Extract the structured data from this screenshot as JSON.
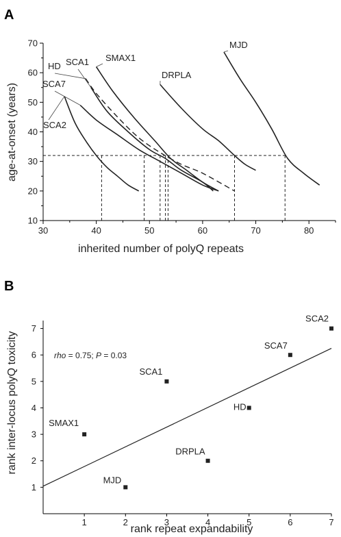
{
  "panels": {
    "a": "A",
    "b": "B"
  },
  "chart_data": [
    {
      "type": "line",
      "panel": "A",
      "title": "",
      "xlabel": "inherited number of polyQ repeats",
      "ylabel": "age-at-onset (years)",
      "xlim": [
        30,
        85
      ],
      "ylim": [
        10,
        70
      ],
      "xticks": [
        "30",
        "40",
        "50",
        "60",
        "70",
        "80"
      ],
      "yticks": [
        "10",
        "20",
        "30",
        "40",
        "50",
        "60",
        "70"
      ],
      "grid": false,
      "series": [
        {
          "name": "SCA2",
          "style": "solid",
          "points": [
            [
              34,
              52
            ],
            [
              36,
              43
            ],
            [
              38,
              37
            ],
            [
              40,
              32
            ],
            [
              42,
              28
            ],
            [
              44,
              25
            ],
            [
              46,
              22
            ],
            [
              48,
              20
            ]
          ]
        },
        {
          "name": "SCA7",
          "style": "solid",
          "points": [
            [
              37,
              49
            ],
            [
              40,
              44
            ],
            [
              44,
              39
            ],
            [
              48,
              34
            ],
            [
              52,
              30
            ],
            [
              56,
              26
            ],
            [
              60,
              22
            ],
            [
              63,
              20
            ]
          ]
        },
        {
          "name": "HD",
          "style": "dashed",
          "points": [
            [
              38,
              58
            ],
            [
              40,
              53
            ],
            [
              44,
              45
            ],
            [
              48,
              38
            ],
            [
              52,
              33
            ],
            [
              56,
              29
            ],
            [
              60,
              26
            ],
            [
              66,
              20
            ]
          ]
        },
        {
          "name": "SCA1",
          "style": "solid",
          "points": [
            [
              39,
              55
            ],
            [
              42,
              47
            ],
            [
              46,
              40
            ],
            [
              50,
              34
            ],
            [
              53,
              31
            ],
            [
              56,
              27
            ],
            [
              60,
              23
            ],
            [
              62,
              20
            ]
          ]
        },
        {
          "name": "SMAX1",
          "style": "solid",
          "points": [
            [
              40,
              62
            ],
            [
              43,
              54
            ],
            [
              47,
              45
            ],
            [
              51,
              37
            ],
            [
              54,
              31
            ],
            [
              57,
              27
            ],
            [
              60,
              23
            ],
            [
              63,
              20
            ]
          ]
        },
        {
          "name": "DRPLA",
          "style": "solid",
          "points": [
            [
              52,
              56
            ],
            [
              56,
              48
            ],
            [
              60,
              41
            ],
            [
              63,
              37
            ],
            [
              66,
              32
            ],
            [
              68,
              29
            ],
            [
              70,
              27
            ]
          ]
        },
        {
          "name": "MJD",
          "style": "solid",
          "points": [
            [
              64,
              67
            ],
            [
              67,
              58
            ],
            [
              70,
              50
            ],
            [
              73,
              41
            ],
            [
              76,
              31
            ],
            [
              79,
              26
            ],
            [
              82,
              22
            ]
          ]
        }
      ],
      "reference": {
        "y": 32,
        "x_values": [
          41,
          49,
          52,
          53,
          53.5,
          66,
          75.5
        ]
      }
    },
    {
      "type": "scatter",
      "panel": "B",
      "title": "",
      "xlabel": "rank repeat expandability",
      "ylabel": "rank inter-locus polyQ toxicity",
      "xlim": [
        0,
        7
      ],
      "ylim": [
        0,
        7.3
      ],
      "xticks": [
        "1",
        "2",
        "3",
        "4",
        "5",
        "6",
        "7"
      ],
      "yticks": [
        "1",
        "2",
        "3",
        "4",
        "5",
        "6",
        "7"
      ],
      "grid": false,
      "annotation": {
        "rho_symbol": "rho",
        "rho_value": " = 0.75; ",
        "p_symbol": "P",
        "p_value": " = 0.03"
      },
      "points": [
        {
          "label": "SMAX1",
          "x": 1,
          "y": 3
        },
        {
          "label": "MJD",
          "x": 2,
          "y": 1
        },
        {
          "label": "SCA1",
          "x": 3,
          "y": 5
        },
        {
          "label": "DRPLA",
          "x": 4,
          "y": 2
        },
        {
          "label": "HD",
          "x": 5,
          "y": 4
        },
        {
          "label": "SCA7",
          "x": 6,
          "y": 6
        },
        {
          "label": "SCA2",
          "x": 7,
          "y": 7
        }
      ],
      "fit_line": {
        "x": [
          0,
          7
        ],
        "y": [
          1.04,
          6.25
        ]
      }
    }
  ]
}
